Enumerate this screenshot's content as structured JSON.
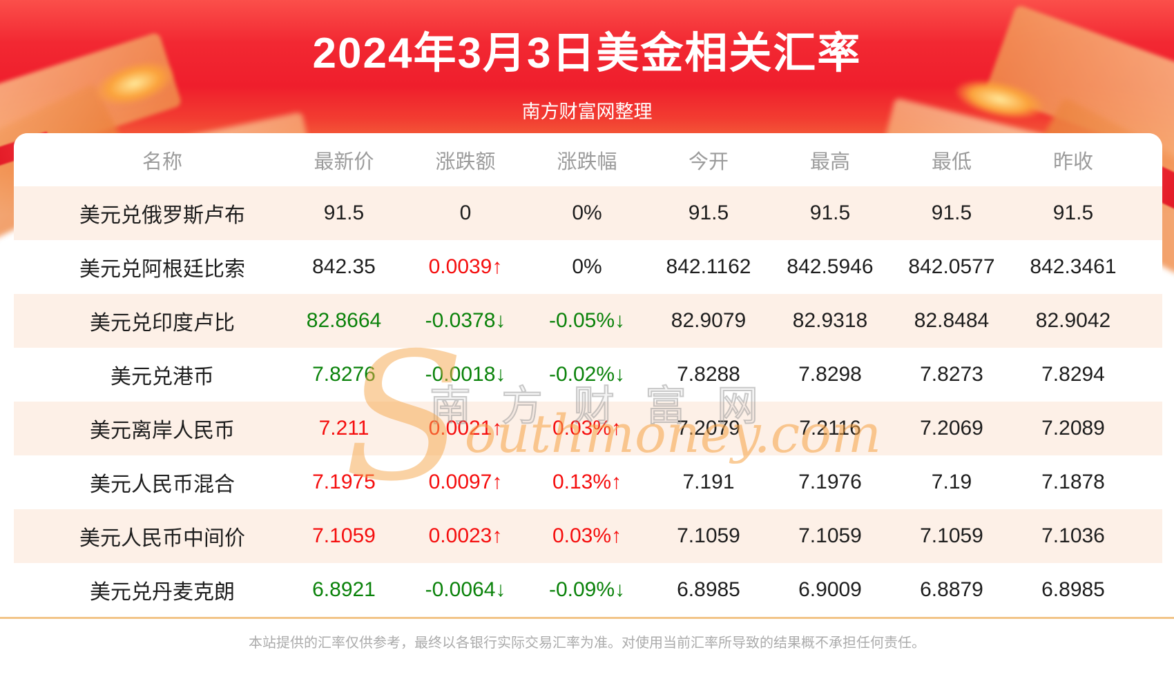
{
  "header": {
    "title": "2024年3月3日美金相关汇率",
    "subtitle": "南方财富网整理"
  },
  "table": {
    "columns": [
      "名称",
      "最新价",
      "涨跌额",
      "涨跌幅",
      "今开",
      "最高",
      "最低",
      "昨收"
    ],
    "rows": [
      {
        "name": "美元兑俄罗斯卢布",
        "latest": "91.5",
        "latest_trend": "flat",
        "change": "0",
        "change_trend": "flat",
        "change_pct": "0%",
        "pct_trend": "flat",
        "open": "91.5",
        "high": "91.5",
        "low": "91.5",
        "prev_close": "91.5"
      },
      {
        "name": "美元兑阿根廷比索",
        "latest": "842.35",
        "latest_trend": "flat",
        "change": "0.0039↑",
        "change_trend": "up",
        "change_pct": "0%",
        "pct_trend": "flat",
        "open": "842.1162",
        "high": "842.5946",
        "low": "842.0577",
        "prev_close": "842.3461"
      },
      {
        "name": "美元兑印度卢比",
        "latest": "82.8664",
        "latest_trend": "down",
        "change": "-0.0378↓",
        "change_trend": "down",
        "change_pct": "-0.05%↓",
        "pct_trend": "down",
        "open": "82.9079",
        "high": "82.9318",
        "low": "82.8484",
        "prev_close": "82.9042"
      },
      {
        "name": "美元兑港币",
        "latest": "7.8276",
        "latest_trend": "down",
        "change": "-0.0018↓",
        "change_trend": "down",
        "change_pct": "-0.02%↓",
        "pct_trend": "down",
        "open": "7.8288",
        "high": "7.8298",
        "low": "7.8273",
        "prev_close": "7.8294"
      },
      {
        "name": "美元离岸人民币",
        "latest": "7.211",
        "latest_trend": "up",
        "change": "0.0021↑",
        "change_trend": "up",
        "change_pct": "0.03%↑",
        "pct_trend": "up",
        "open": "7.2079",
        "high": "7.2116",
        "low": "7.2069",
        "prev_close": "7.2089"
      },
      {
        "name": "美元人民币混合",
        "latest": "7.1975",
        "latest_trend": "up",
        "change": "0.0097↑",
        "change_trend": "up",
        "change_pct": "0.13%↑",
        "pct_trend": "up",
        "open": "7.191",
        "high": "7.1976",
        "low": "7.19",
        "prev_close": "7.1878"
      },
      {
        "name": "美元人民币中间价",
        "latest": "7.1059",
        "latest_trend": "up",
        "change": "0.0023↑",
        "change_trend": "up",
        "change_pct": "0.03%↑",
        "pct_trend": "up",
        "open": "7.1059",
        "high": "7.1059",
        "low": "7.1059",
        "prev_close": "7.1036"
      },
      {
        "name": "美元兑丹麦克朗",
        "latest": "6.8921",
        "latest_trend": "down",
        "change": "-0.0064↓",
        "change_trend": "down",
        "change_pct": "-0.09%↓",
        "pct_trend": "down",
        "open": "6.8985",
        "high": "6.9009",
        "low": "6.8879",
        "prev_close": "6.8985"
      }
    ]
  },
  "watermark": {
    "cn": "南方财富网",
    "en_first": "S",
    "en_rest": "outhmoney.com"
  },
  "footer": {
    "disclaimer": "本站提供的汇率仅供参考，最终以各银行实际交易汇率为准。对使用当前汇率所导致的结果概不承担任何责任。"
  },
  "colors": {
    "up": "#f50d0d",
    "down": "#0a820a",
    "flat": "#1d1d1d",
    "divider": "#f2c488",
    "row_alt": "#fdf0e7",
    "hero_red": "#ef1e2c"
  }
}
